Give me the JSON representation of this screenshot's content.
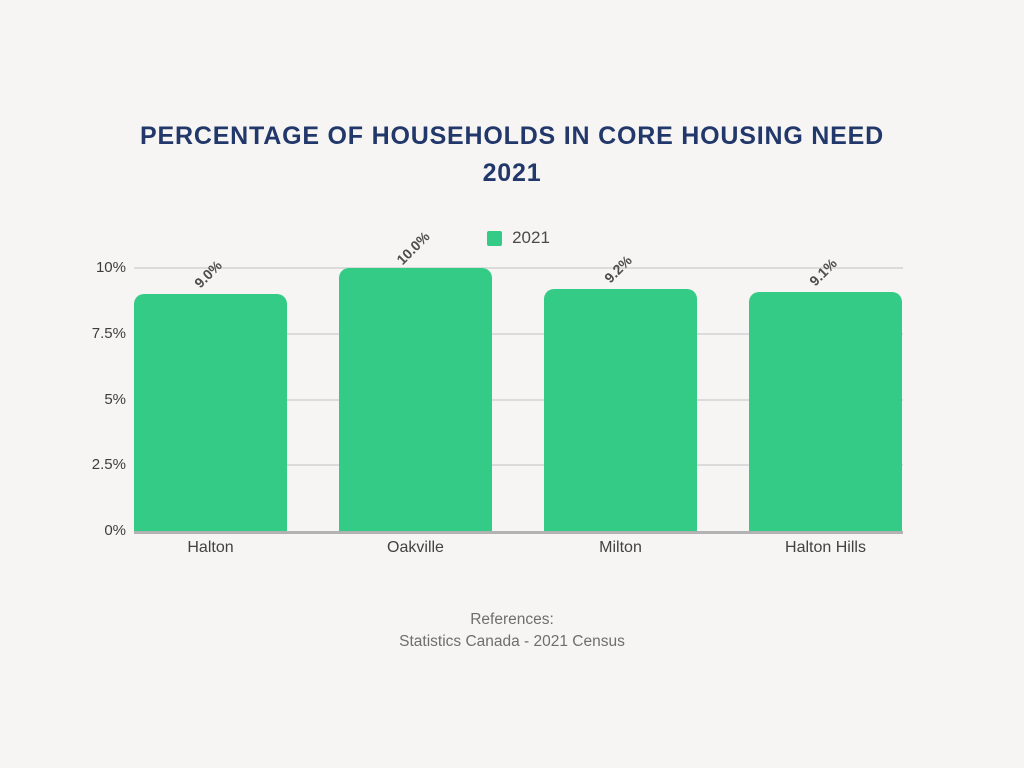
{
  "page": {
    "background_color": "#f6f5f3"
  },
  "title": {
    "line1": "PERCENTAGE OF HOUSEHOLDS IN CORE HOUSING NEED",
    "line2": "2021",
    "color": "#22386a"
  },
  "legend": {
    "label": "2021",
    "swatch_color": "#33cb86"
  },
  "references": {
    "line1": "References:",
    "line2": "Statistics Canada - 2021 Census"
  },
  "colors": {
    "bar": "#33cb86",
    "gridline": "#dbdbdb",
    "axis_line": "#b2b2b2",
    "tick_text": "#3d3d3d",
    "value_label": "#4d4d4d",
    "title_navy": "#22386a",
    "reference_gray": "#6e6e6e"
  },
  "chart_data": {
    "type": "bar",
    "title": "Percentage of Households in Core Housing Need 2021",
    "categories": [
      "Halton",
      "Oakville",
      "Milton",
      "Halton Hills"
    ],
    "series": [
      {
        "name": "2021",
        "values": [
          9.0,
          10.0,
          9.2,
          9.1
        ]
      }
    ],
    "value_labels": [
      "9.0%",
      "10.0%",
      "9.2%",
      "9.1%"
    ],
    "yticks": [
      "0%",
      "2.5%",
      "5%",
      "7.5%",
      "10%"
    ],
    "ytick_values": [
      0,
      2.5,
      5,
      7.5,
      10
    ],
    "ylim": [
      0,
      10
    ],
    "xlabel": "",
    "ylabel": "",
    "grid": true,
    "legend_position": "top-center",
    "bar_color": "#33cb86"
  }
}
